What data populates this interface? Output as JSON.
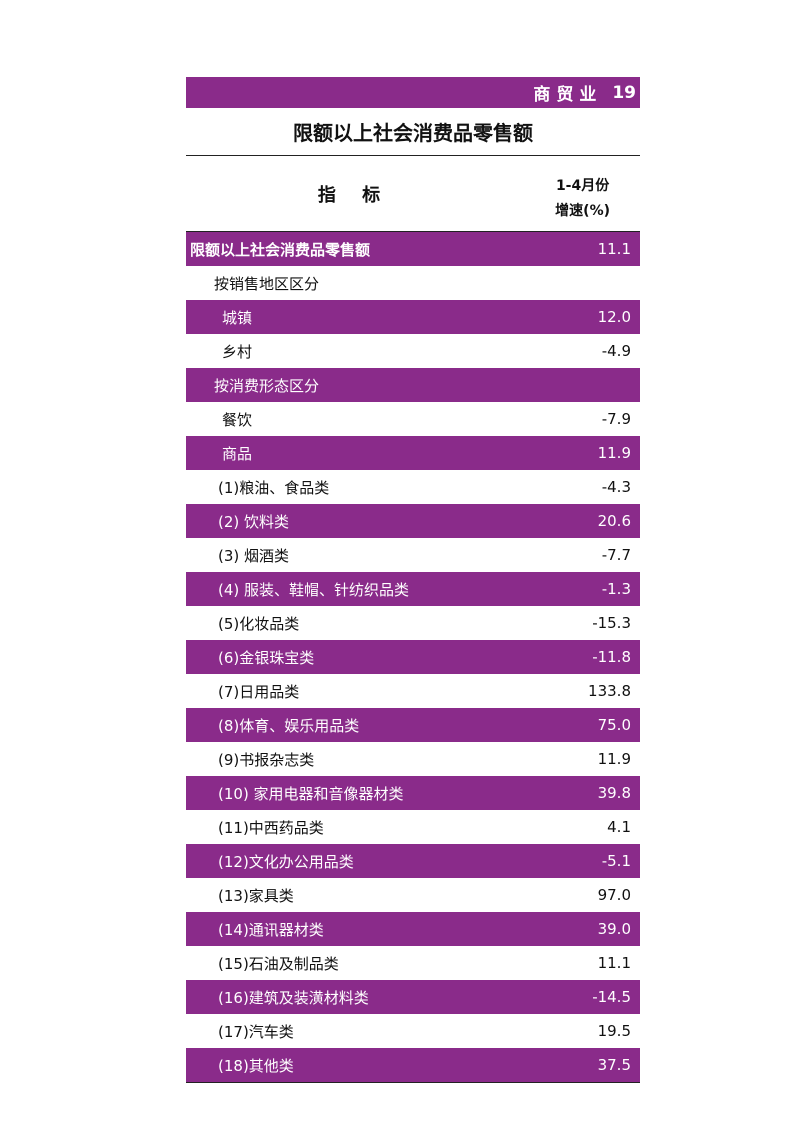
{
  "header": {
    "section": "商贸业",
    "page_number": "19"
  },
  "title": "限额以上社会消费品零售额",
  "columns": {
    "indicator": "指 标",
    "value_line1": "1-4月份",
    "value_line2": "增速(%)"
  },
  "rows": [
    {
      "label": "限额以上社会消费品零售额",
      "value": "11.1",
      "indent": 4,
      "bold": true,
      "purple": true
    },
    {
      "label": "按销售地区区分",
      "value": "",
      "indent": 28,
      "bold": false,
      "purple": false
    },
    {
      "label": "城镇",
      "value": "12.0",
      "indent": 36,
      "bold": false,
      "purple": true
    },
    {
      "label": "乡村",
      "value": "-4.9",
      "indent": 36,
      "bold": false,
      "purple": false
    },
    {
      "label": "按消费形态区分",
      "value": "",
      "indent": 28,
      "bold": false,
      "purple": true
    },
    {
      "label": "餐饮",
      "value": "-7.9",
      "indent": 36,
      "bold": false,
      "purple": false
    },
    {
      "label": "商品",
      "value": "11.9",
      "indent": 36,
      "bold": false,
      "purple": true
    },
    {
      "label": "(1)粮油、食品类",
      "value": "-4.3",
      "indent": 32,
      "bold": false,
      "purple": false
    },
    {
      "label": "(2) 饮料类",
      "value": "20.6",
      "indent": 32,
      "bold": false,
      "purple": true
    },
    {
      "label": "(3) 烟酒类",
      "value": "-7.7",
      "indent": 32,
      "bold": false,
      "purple": false
    },
    {
      "label": "(4) 服装、鞋帽、针纺织品类",
      "value": "-1.3",
      "indent": 32,
      "bold": false,
      "purple": true
    },
    {
      "label": "(5)化妆品类",
      "value": "-15.3",
      "indent": 32,
      "bold": false,
      "purple": false
    },
    {
      "label": "(6)金银珠宝类",
      "value": "-11.8",
      "indent": 32,
      "bold": false,
      "purple": true
    },
    {
      "label": "(7)日用品类",
      "value": "133.8",
      "indent": 32,
      "bold": false,
      "purple": false
    },
    {
      "label": "(8)体育、娱乐用品类",
      "value": "75.0",
      "indent": 32,
      "bold": false,
      "purple": true
    },
    {
      "label": "(9)书报杂志类",
      "value": "11.9",
      "indent": 32,
      "bold": false,
      "purple": false
    },
    {
      "label": "(10) 家用电器和音像器材类",
      "value": "39.8",
      "indent": 32,
      "bold": false,
      "purple": true
    },
    {
      "label": "(11)中西药品类",
      "value": "4.1",
      "indent": 32,
      "bold": false,
      "purple": false
    },
    {
      "label": "(12)文化办公用品类",
      "value": "-5.1",
      "indent": 32,
      "bold": false,
      "purple": true
    },
    {
      "label": "(13)家具类",
      "value": "97.0",
      "indent": 32,
      "bold": false,
      "purple": false
    },
    {
      "label": "(14)通讯器材类",
      "value": "39.0",
      "indent": 32,
      "bold": false,
      "purple": true
    },
    {
      "label": "(15)石油及制品类",
      "value": "11.1",
      "indent": 32,
      "bold": false,
      "purple": false
    },
    {
      "label": "(16)建筑及装潢材料类",
      "value": "-14.5",
      "indent": 32,
      "bold": false,
      "purple": true
    },
    {
      "label": "(17)汽车类",
      "value": "19.5",
      "indent": 32,
      "bold": false,
      "purple": false
    },
    {
      "label": "(18)其他类",
      "value": "37.5",
      "indent": 32,
      "bold": false,
      "purple": true
    }
  ],
  "colors": {
    "accent": "#8a2b8a",
    "text_on_accent": "#ffffff",
    "rule": "#222222"
  }
}
